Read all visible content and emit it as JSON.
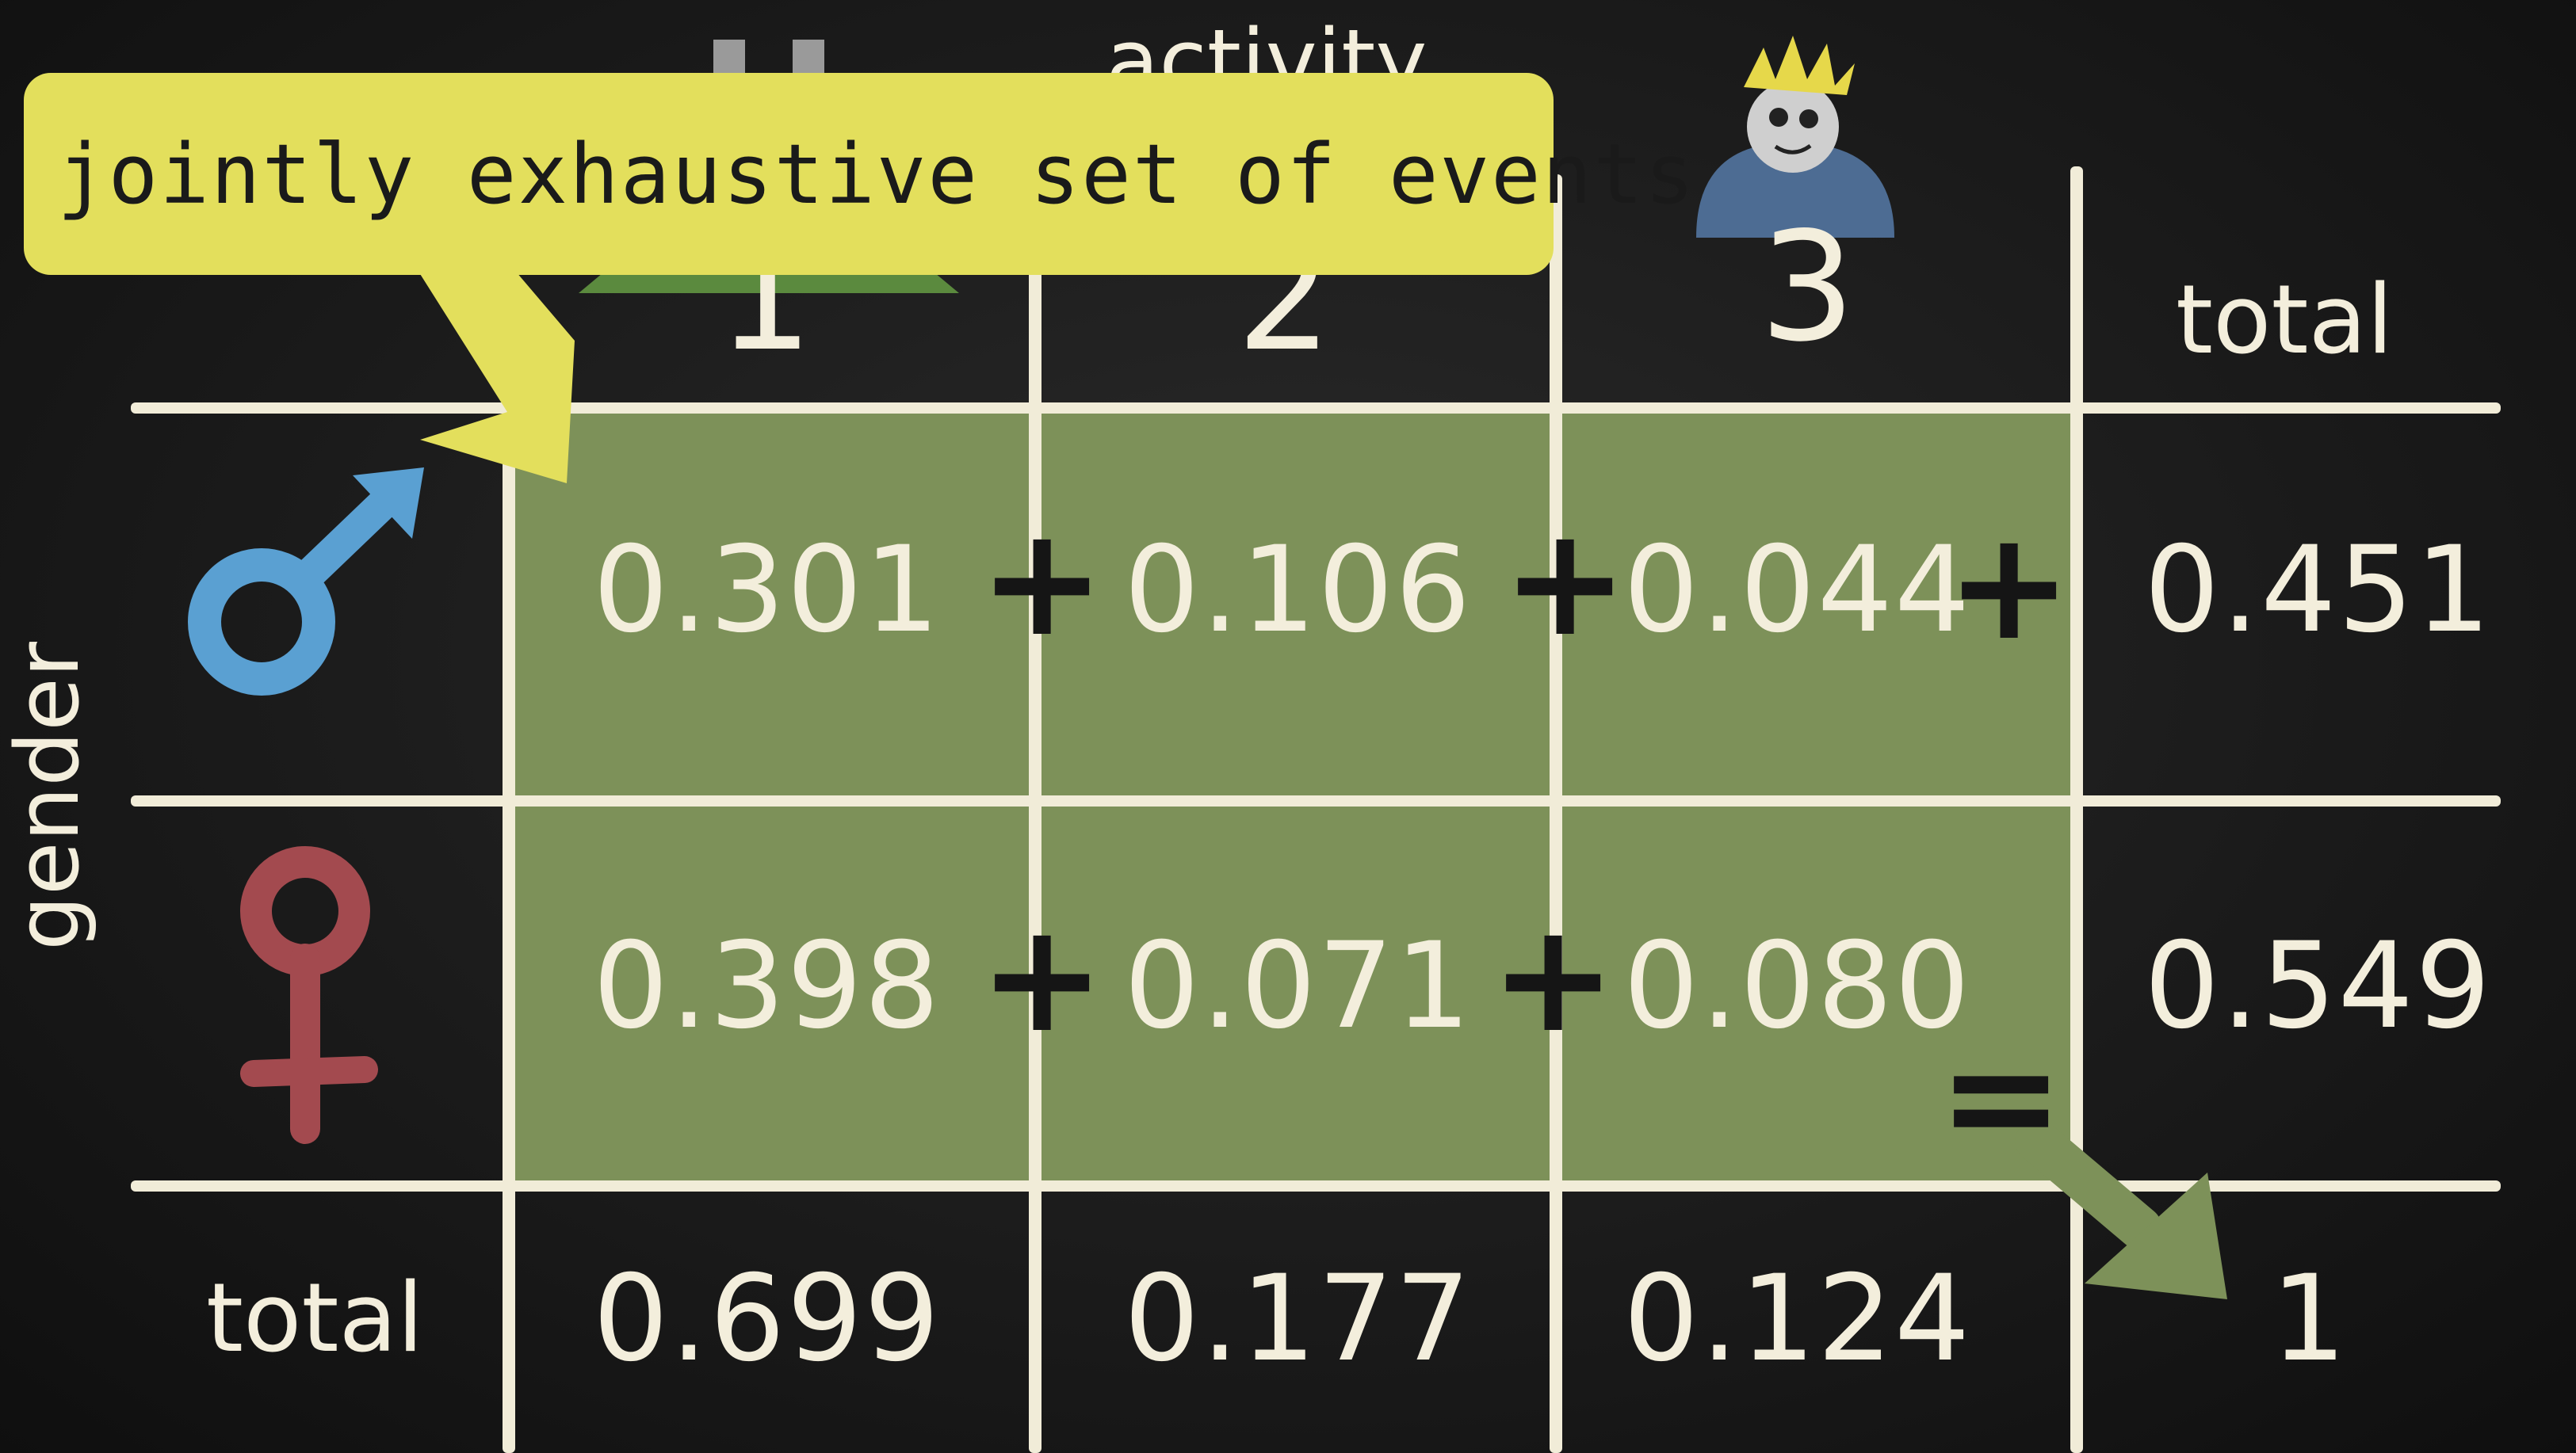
{
  "callout": {
    "text": "jointly exhaustive set of events"
  },
  "header": {
    "activity_label": "activity",
    "col1": "1",
    "col2": "2",
    "col3": "3",
    "total": "total"
  },
  "row_axis": {
    "label": "gender"
  },
  "rows": [
    {
      "name": "male",
      "icon": "male-symbol-icon",
      "color": "#5aa0d2",
      "values": [
        "0.301",
        "0.106",
        "0.044"
      ],
      "total": "0.451"
    },
    {
      "name": "female",
      "icon": "female-symbol-icon",
      "color": "#a34a4f",
      "values": [
        "0.398",
        "0.071",
        "0.080"
      ],
      "total": "0.549"
    }
  ],
  "totals_row": {
    "label": "total",
    "values": [
      "0.699",
      "0.177",
      "0.124"
    ],
    "grand_total": "1"
  },
  "operators": {
    "plus": "+",
    "equals": "="
  },
  "colors": {
    "cell_fill": "#7d9159",
    "callout_fill": "#e3df5c",
    "chalk": "#f1ecd8"
  }
}
